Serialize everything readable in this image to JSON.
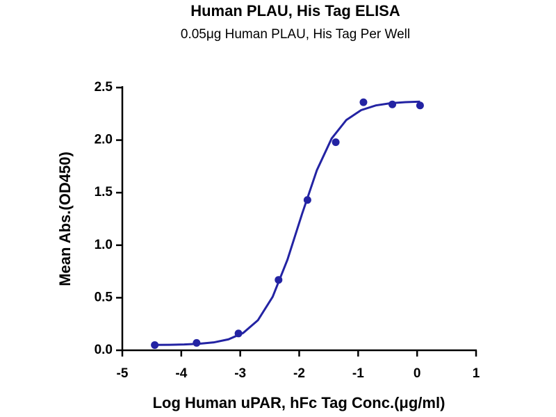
{
  "chart_data": {
    "type": "scatter",
    "title": "Human PLAU, His Tag ELISA",
    "subtitle": "0.05μg Human PLAU, His Tag Per Well",
    "x_label": "Log Human uPAR, hFc Tag Conc.(μg/ml)",
    "y_label": "Mean Abs.(OD450)",
    "xlim": [
      -5,
      1
    ],
    "xticks": [
      -5,
      -4,
      -3,
      -2,
      -1,
      0,
      1
    ],
    "ylim": [
      0,
      2.5
    ],
    "yticks": [
      {
        "value": 0,
        "label": "0.0"
      },
      {
        "value": 0.5,
        "label": "0.5"
      },
      {
        "value": 1,
        "label": "1.0"
      },
      {
        "value": 1.5,
        "label": "1.5"
      },
      {
        "value": 2,
        "label": "2.0"
      },
      {
        "value": 2.5,
        "label": "2.5"
      }
    ],
    "series": [
      {
        "type": "scatter",
        "color": "#2323a3",
        "x": [
          -4.45,
          -3.74,
          -3.03,
          -2.35,
          -1.86,
          -1.38,
          -0.91,
          -0.42,
          0.05
        ],
        "values": [
          0.05,
          0.07,
          0.16,
          0.67,
          1.43,
          1.98,
          2.36,
          2.34,
          2.33
        ]
      },
      {
        "type": "line",
        "color": "#2323a3",
        "x": [
          -4.45,
          -4.2,
          -3.95,
          -3.7,
          -3.45,
          -3.2,
          -2.95,
          -2.7,
          -2.45,
          -2.2,
          -1.95,
          -1.7,
          -1.45,
          -1.2,
          -0.95,
          -0.7,
          -0.45,
          -0.2,
          0.05
        ],
        "values": [
          0.051,
          0.052,
          0.055,
          0.062,
          0.075,
          0.104,
          0.165,
          0.286,
          0.509,
          0.861,
          1.3,
          1.714,
          2.015,
          2.192,
          2.285,
          2.33,
          2.351,
          2.361,
          2.366
        ]
      }
    ]
  }
}
